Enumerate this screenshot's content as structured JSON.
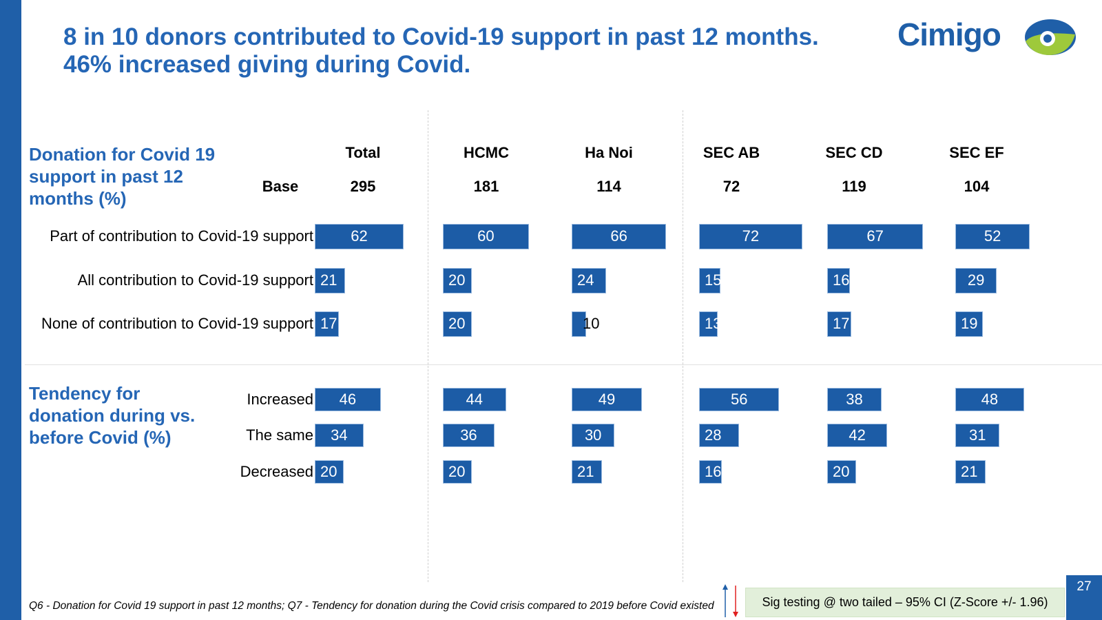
{
  "title_lines": [
    "8 in 10 donors contributed to Covid-19 support in past 12 months.",
    "46% increased giving during Covid."
  ],
  "logo": {
    "text": "Cimigo",
    "colors": {
      "blue": "#1f5fa8",
      "green": "#9ec93b"
    }
  },
  "base_label": "Base",
  "columns": [
    {
      "name": "Total",
      "base": "295"
    },
    {
      "name": "HCMC",
      "base": "181"
    },
    {
      "name": "Ha Noi",
      "base": "114"
    },
    {
      "name": "SEC AB",
      "base": "72"
    },
    {
      "name": "SEC CD",
      "base": "119"
    },
    {
      "name": "SEC EF",
      "base": "104"
    }
  ],
  "chart_data": [
    {
      "type": "bar",
      "orientation": "horizontal",
      "title": "Donation for Covid 19 support in past 12 months (%)",
      "categories": [
        "Part of contribution to Covid-19 support",
        "All contribution to Covid-19 support",
        "None of contribution to Covid-19 support"
      ],
      "series": [
        {
          "name": "Total",
          "values": [
            62,
            21,
            17
          ]
        },
        {
          "name": "HCMC",
          "values": [
            60,
            20,
            20
          ]
        },
        {
          "name": "Ha Noi",
          "values": [
            66,
            24,
            10
          ]
        },
        {
          "name": "SEC AB",
          "values": [
            72,
            15,
            13
          ]
        },
        {
          "name": "SEC CD",
          "values": [
            67,
            16,
            17
          ]
        },
        {
          "name": "SEC EF",
          "values": [
            52,
            29,
            19
          ]
        }
      ]
    },
    {
      "type": "bar",
      "orientation": "horizontal",
      "title": "Tendency for donation during vs. before Covid (%)",
      "categories": [
        "Increased",
        "The same",
        "Decreased"
      ],
      "series": [
        {
          "name": "Total",
          "values": [
            46,
            34,
            20
          ]
        },
        {
          "name": "HCMC",
          "values": [
            44,
            36,
            20
          ]
        },
        {
          "name": "Ha Noi",
          "values": [
            49,
            30,
            21
          ]
        },
        {
          "name": "SEC AB",
          "values": [
            56,
            28,
            16
          ]
        },
        {
          "name": "SEC CD",
          "values": [
            38,
            42,
            20
          ]
        },
        {
          "name": "SEC EF",
          "values": [
            48,
            31,
            21
          ]
        }
      ]
    }
  ],
  "section1_lines": [
    "Donation for Covid 19",
    "support in past 12",
    "months (%)"
  ],
  "section2_lines": [
    "Tendency for",
    "donation during vs.",
    "before Covid (%)"
  ],
  "footnote": "Q6 - Donation for Covid 19 support in past 12 months; Q7 - Tendency for donation during the Covid crisis compared to 2019 before Covid existed",
  "sig_testing": "Sig testing @ two tailed – 95% CI (Z-Score +/- 1.96)",
  "page_number": "27",
  "colors": {
    "bar": "#1c5ca6",
    "title": "#2566b5",
    "sig_up": "#1f5fa8",
    "sig_down": "#e02020",
    "sig_box": "#e2efda"
  }
}
